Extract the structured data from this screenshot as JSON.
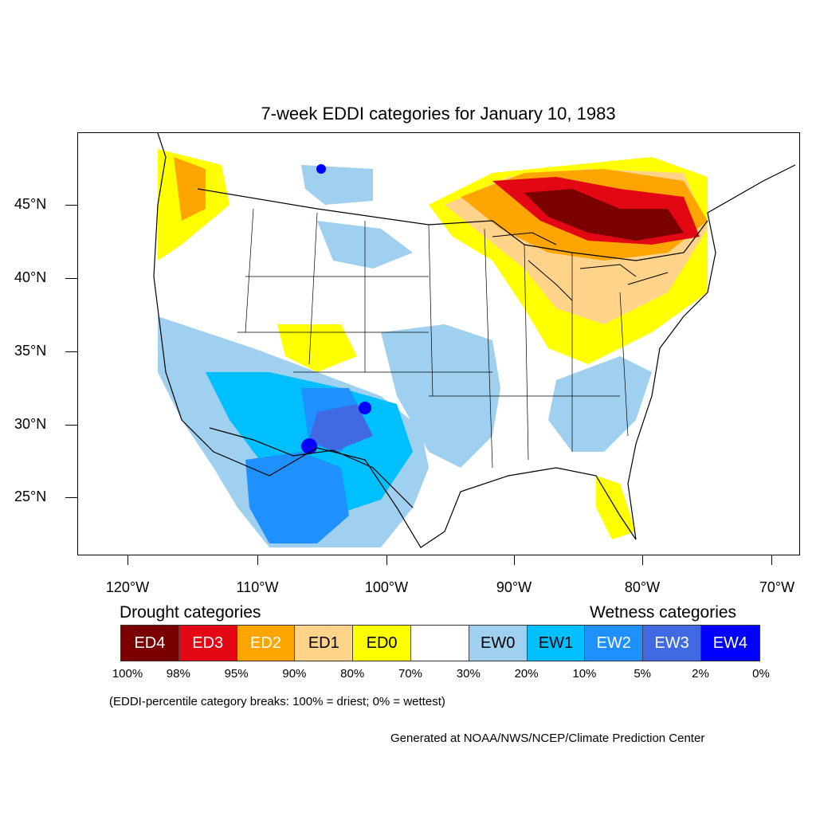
{
  "title": "7-week EDDI categories for January 10, 1983",
  "lat_labels": [
    "45°N",
    "40°N",
    "35°N",
    "30°N",
    "25°N"
  ],
  "lon_labels": [
    "120°W",
    "110°W",
    "100°W",
    "90°W",
    "80°W",
    "70°W"
  ],
  "legend": {
    "drought_title": "Drought categories",
    "wetness_title": "Wetness categories",
    "categories": [
      {
        "label": "ED4",
        "color": "#7a0000",
        "text_color": "#ffffff"
      },
      {
        "label": "ED3",
        "color": "#e30613",
        "text_color": "#ffffff"
      },
      {
        "label": "ED2",
        "color": "#ffa500",
        "text_color": "#ffffff"
      },
      {
        "label": "ED1",
        "color": "#ffd38a",
        "text_color": "#000000"
      },
      {
        "label": "ED0",
        "color": "#ffff00",
        "text_color": "#000000"
      },
      {
        "label": "",
        "color": "#ffffff",
        "text_color": "#000000"
      },
      {
        "label": "EW0",
        "color": "#9fd0f0",
        "text_color": "#000000"
      },
      {
        "label": "EW1",
        "color": "#00bfff",
        "text_color": "#000000"
      },
      {
        "label": "EW2",
        "color": "#1e90ff",
        "text_color": "#ffffff"
      },
      {
        "label": "EW3",
        "color": "#4169e1",
        "text_color": "#ffffff"
      },
      {
        "label": "EW4",
        "color": "#0000ff",
        "text_color": "#ffffff"
      }
    ],
    "breaks": [
      "100%",
      "98%",
      "95%",
      "90%",
      "80%",
      "70%",
      "30%",
      "20%",
      "10%",
      "5%",
      "2%",
      "0%"
    ]
  },
  "note": "(EDDI-percentile category breaks: 100% = driest; 0% = wettest)",
  "credit": "Generated at NOAA/NWS/NCEP/Climate Prediction Center"
}
